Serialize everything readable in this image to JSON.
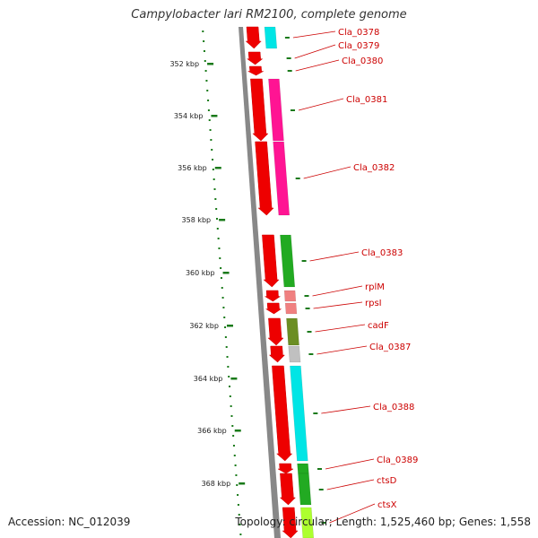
{
  "title": "Campylobacter lari RM2100, complete genome",
  "footer": {
    "accession": "Accession: NC_012039",
    "summary": "Topology: circular; Length: 1,525,460 bp; Genes: 1,558"
  },
  "colors": {
    "backbone": "#888888",
    "cds": "#ee0000",
    "tick": "#1a7a1a",
    "label": "#cc0000"
  },
  "ticks": [
    "352 kbp",
    "354 kbp",
    "356 kbp",
    "358 kbp",
    "360 kbp",
    "362 kbp",
    "364 kbp",
    "366 kbp",
    "368 kbp"
  ],
  "genes": [
    {
      "label": "Cla_0378",
      "cog_color": "#00e5e5"
    },
    {
      "label": "Cla_0379",
      "cog_color": ""
    },
    {
      "label": "Cla_0380",
      "cog_color": ""
    },
    {
      "label": "Cla_0381",
      "cog_color": "#ff1493"
    },
    {
      "label": "Cla_0382",
      "cog_color": "#ff1493"
    },
    {
      "label": "Cla_0383",
      "cog_color": "#22aa22"
    },
    {
      "label": "rplM",
      "cog_color": "#f08080"
    },
    {
      "label": "rpsI",
      "cog_color": "#f08080"
    },
    {
      "label": "cadF",
      "cog_color": "#6b8e23"
    },
    {
      "label": "Cla_0387",
      "cog_color": "#c0c0c0"
    },
    {
      "label": "Cla_0388",
      "cog_color": "#00e5e5"
    },
    {
      "label": "Cla_0389",
      "cog_color": "#22aa22"
    },
    {
      "label": "ctsD",
      "cog_color": "#22aa22"
    },
    {
      "label": "ctsX",
      "cog_color": "#adff2f"
    }
  ]
}
